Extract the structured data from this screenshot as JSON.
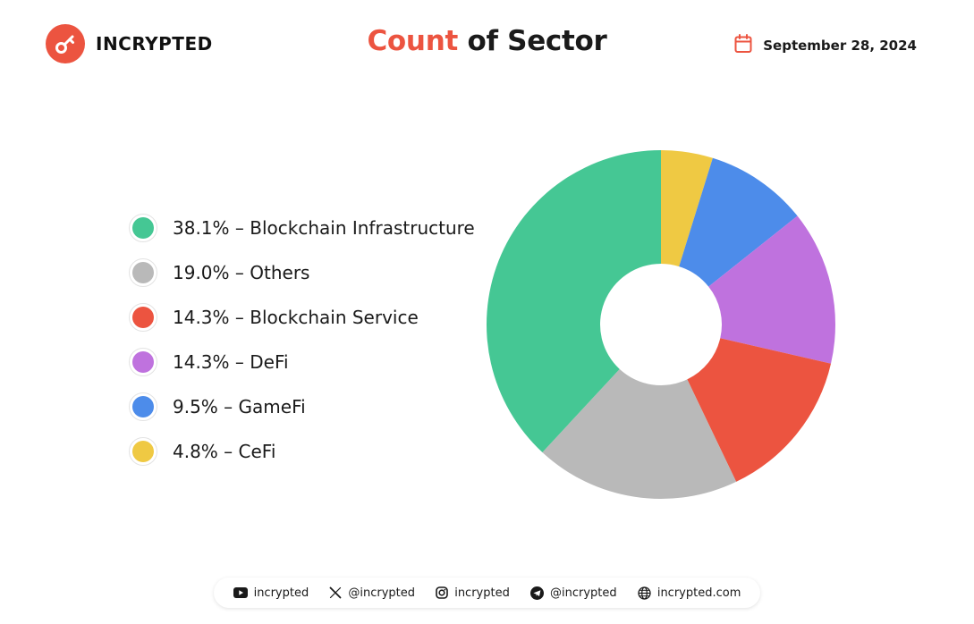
{
  "brand": {
    "name": "INCRYPTED"
  },
  "title": {
    "accent": "Count",
    "rest": "of Sector"
  },
  "date": "September 28, 2024",
  "legend": [
    {
      "label": "38.1% – Blockchain Infrastructure",
      "color": "#45c794"
    },
    {
      "label": "19.0% – Others",
      "color": "#b9b9b9"
    },
    {
      "label": "14.3% – Blockchain Service",
      "color": "#ec5440"
    },
    {
      "label": "14.3% – DeFi",
      "color": "#bf72de"
    },
    {
      "label": "9.5% – GameFi",
      "color": "#4d8cea"
    },
    {
      "label": "4.8% – CeFi",
      "color": "#efc943"
    }
  ],
  "chart_data": {
    "type": "pie",
    "title": "Count of Sector",
    "donut": true,
    "start": "12 o'clock",
    "direction": "clockwise",
    "categories": [
      "CeFi",
      "GameFi",
      "DeFi",
      "Blockchain Service",
      "Others",
      "Blockchain Infrastructure"
    ],
    "values": [
      4.8,
      9.5,
      14.3,
      14.3,
      19.0,
      38.1
    ],
    "colors": [
      "#efc943",
      "#4d8cea",
      "#bf72de",
      "#ec5440",
      "#b9b9b9",
      "#45c794"
    ],
    "legend_position": "left"
  },
  "footer": {
    "youtube": "incrypted",
    "x": "@incrypted",
    "instagram": "incrypted",
    "telegram": "@incrypted",
    "web": "incrypted.com"
  }
}
